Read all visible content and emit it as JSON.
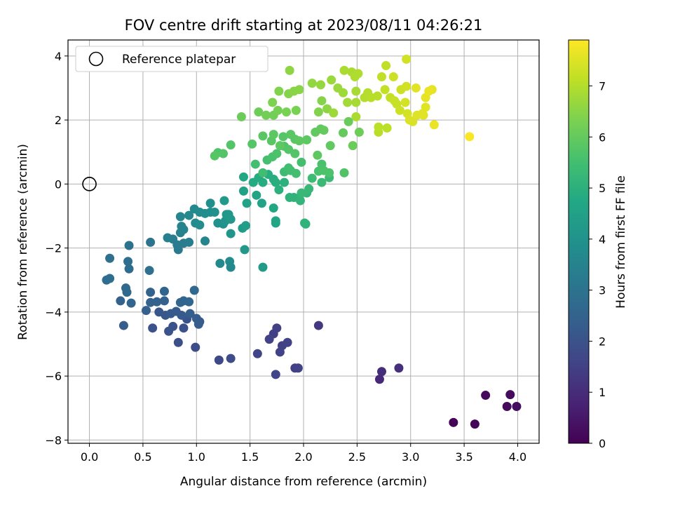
{
  "chart_data": {
    "type": "scatter",
    "title": "FOV centre drift starting at 2023/08/11 04:26:21",
    "xlabel": "Angular distance from reference (arcmin)",
    "ylabel": "Rotation from reference (arcmin)",
    "xlim": [
      -0.2,
      4.2
    ],
    "ylim": [
      -8.1,
      4.5
    ],
    "xticks": [
      0.0,
      0.5,
      1.0,
      1.5,
      2.0,
      2.5,
      3.0,
      3.5,
      4.0
    ],
    "xtick_labels": [
      "0.0",
      "0.5",
      "1.0",
      "1.5",
      "2.0",
      "2.5",
      "3.0",
      "3.5",
      "4.0"
    ],
    "yticks": [
      -8,
      -6,
      -4,
      -2,
      0,
      2,
      4
    ],
    "ytick_labels": [
      "−8",
      "−6",
      "−4",
      "−2",
      "0",
      "2",
      "4"
    ],
    "grid": true,
    "colormap": "viridis",
    "colorbar": {
      "label": "Hours from first FF file",
      "range": [
        0,
        7.9
      ],
      "ticks": [
        0,
        1,
        2,
        3,
        4,
        5,
        6,
        7
      ],
      "tick_labels": [
        "0",
        "1",
        "2",
        "3",
        "4",
        "5",
        "6",
        "7"
      ]
    },
    "legend": {
      "position": "upper-left",
      "entries": [
        {
          "label": "Reference platepar",
          "marker": "open-circle"
        }
      ]
    },
    "reference_point": {
      "x": 0.0,
      "y": 0.0
    },
    "series_format": "[x, y, hours]",
    "points": [
      [
        3.4,
        -7.45,
        0.05
      ],
      [
        3.6,
        -7.5,
        0.1
      ],
      [
        3.7,
        -6.6,
        0.15
      ],
      [
        3.9,
        -6.95,
        0.2
      ],
      [
        3.93,
        -6.58,
        0.25
      ],
      [
        3.99,
        -6.95,
        0.28
      ],
      [
        2.71,
        -6.1,
        0.9
      ],
      [
        2.73,
        -5.86,
        1.0
      ],
      [
        2.89,
        -5.75,
        1.05
      ],
      [
        2.14,
        -4.42,
        1.3
      ],
      [
        1.75,
        -4.5,
        1.5
      ],
      [
        1.72,
        -4.68,
        1.45
      ],
      [
        1.68,
        -4.85,
        1.55
      ],
      [
        1.8,
        -5.05,
        1.5
      ],
      [
        1.85,
        -4.95,
        1.52
      ],
      [
        1.78,
        -5.25,
        1.55
      ],
      [
        1.57,
        -5.3,
        1.6
      ],
      [
        1.92,
        -5.75,
        1.5
      ],
      [
        1.95,
        -5.75,
        1.55
      ],
      [
        1.74,
        -5.95,
        1.6
      ],
      [
        1.21,
        -5.5,
        1.75
      ],
      [
        1.32,
        -5.45,
        1.8
      ],
      [
        0.99,
        -5.1,
        1.85
      ],
      [
        0.83,
        -4.95,
        1.9
      ],
      [
        0.88,
        -4.5,
        1.95
      ],
      [
        0.78,
        -4.45,
        2.0
      ],
      [
        0.91,
        -4.22,
        2.05
      ],
      [
        0.59,
        -4.5,
        2.0
      ],
      [
        0.74,
        -4.6,
        2.05
      ],
      [
        0.65,
        -4.0,
        2.1
      ],
      [
        0.71,
        -4.1,
        2.15
      ],
      [
        0.76,
        -4.05,
        2.2
      ],
      [
        0.81,
        -3.98,
        2.25
      ],
      [
        0.86,
        -4.1,
        2.2
      ],
      [
        1.0,
        -4.2,
        2.3
      ],
      [
        1.03,
        -4.3,
        2.25
      ],
      [
        1.02,
        -4.38,
        2.3
      ],
      [
        0.94,
        -4.05,
        2.35
      ],
      [
        0.53,
        -3.95,
        2.4
      ],
      [
        0.57,
        -3.7,
        2.45
      ],
      [
        0.63,
        -3.68,
        2.5
      ],
      [
        0.7,
        -3.65,
        2.45
      ],
      [
        0.57,
        -3.38,
        2.5
      ],
      [
        0.7,
        -3.35,
        2.55
      ],
      [
        0.85,
        -3.7,
        2.6
      ],
      [
        0.88,
        -3.65,
        2.55
      ],
      [
        0.93,
        -3.68,
        2.6
      ],
      [
        0.98,
        -3.32,
        2.65
      ],
      [
        0.32,
        -4.42,
        2.3
      ],
      [
        0.29,
        -3.65,
        2.5
      ],
      [
        0.39,
        -3.72,
        2.55
      ],
      [
        0.34,
        -3.25,
        2.65
      ],
      [
        0.35,
        -3.38,
        2.7
      ],
      [
        0.16,
        -3.0,
        2.8
      ],
      [
        0.19,
        -2.95,
        2.85
      ],
      [
        0.56,
        -2.7,
        2.9
      ],
      [
        0.37,
        -2.65,
        2.8
      ],
      [
        0.36,
        -2.42,
        2.85
      ],
      [
        0.19,
        -2.32,
        2.9
      ],
      [
        0.37,
        -1.92,
        2.95
      ],
      [
        0.57,
        -1.82,
        3.0
      ],
      [
        0.83,
        -2.05,
        3.2
      ],
      [
        0.82,
        -1.9,
        3.25
      ],
      [
        0.88,
        -1.85,
        3.3
      ],
      [
        0.93,
        -1.82,
        3.35
      ],
      [
        0.78,
        -1.72,
        3.35
      ],
      [
        0.73,
        -1.68,
        3.4
      ],
      [
        0.85,
        -1.52,
        3.45
      ],
      [
        0.88,
        -1.42,
        3.5
      ],
      [
        0.86,
        -1.32,
        3.5
      ],
      [
        1.08,
        -1.78,
        3.55
      ],
      [
        0.85,
        -1.02,
        3.6
      ],
      [
        0.93,
        -0.98,
        3.65
      ],
      [
        0.98,
        -0.78,
        3.7
      ],
      [
        1.03,
        -0.88,
        3.75
      ],
      [
        1.08,
        -0.92,
        3.8
      ],
      [
        0.99,
        -1.22,
        3.75
      ],
      [
        1.03,
        -1.28,
        3.8
      ],
      [
        1.13,
        -0.88,
        3.85
      ],
      [
        1.17,
        -0.88,
        3.9
      ],
      [
        1.13,
        -0.6,
        3.9
      ],
      [
        1.2,
        -1.22,
        3.95
      ],
      [
        1.25,
        -1.25,
        4.0
      ],
      [
        1.27,
        -1.15,
        4.05
      ],
      [
        1.22,
        -2.48,
        3.7
      ],
      [
        1.31,
        -2.42,
        3.75
      ],
      [
        1.32,
        -2.6,
        3.7
      ],
      [
        1.32,
        -1.55,
        4.1
      ],
      [
        1.28,
        -0.95,
        4.15
      ],
      [
        1.3,
        -1.05,
        4.15
      ],
      [
        1.32,
        -1.1,
        4.2
      ],
      [
        1.3,
        -0.95,
        4.2
      ],
      [
        1.26,
        -0.52,
        4.25
      ],
      [
        1.43,
        -1.38,
        4.3
      ],
      [
        1.46,
        -1.3,
        4.35
      ],
      [
        1.45,
        -2.05,
        4.2
      ],
      [
        1.62,
        -2.6,
        4.3
      ],
      [
        1.44,
        -0.22,
        4.5
      ],
      [
        1.47,
        -0.6,
        4.55
      ],
      [
        1.56,
        -0.35,
        4.6
      ],
      [
        1.61,
        -0.6,
        4.55
      ],
      [
        1.74,
        -1.15,
        4.6
      ],
      [
        1.74,
        -1.22,
        4.65
      ],
      [
        1.72,
        -0.75,
        4.7
      ],
      [
        1.44,
        0.22,
        4.7
      ],
      [
        1.53,
        0.05,
        4.8
      ],
      [
        1.58,
        0.2,
        4.85
      ],
      [
        1.62,
        0.05,
        4.85
      ],
      [
        1.67,
        0.3,
        4.9
      ],
      [
        1.72,
        0.15,
        4.9
      ],
      [
        1.74,
        0.05,
        4.95
      ],
      [
        1.77,
        -0.18,
        5.0
      ],
      [
        1.82,
        0.05,
        5.0
      ],
      [
        1.87,
        -0.42,
        5.05
      ],
      [
        1.91,
        -0.42,
        5.1
      ],
      [
        1.97,
        -0.52,
        5.15
      ],
      [
        2.01,
        -1.22,
        5.05
      ],
      [
        2.02,
        -1.25,
        5.1
      ],
      [
        2.03,
        -0.28,
        5.2
      ],
      [
        1.98,
        -0.28,
        5.25
      ],
      [
        2.05,
        -0.15,
        5.25
      ],
      [
        2.17,
        0.05,
        5.3
      ],
      [
        2.24,
        0.2,
        5.35
      ],
      [
        2.08,
        0.18,
        5.4
      ],
      [
        1.82,
        0.38,
        5.4
      ],
      [
        1.86,
        0.5,
        5.45
      ],
      [
        1.88,
        0.42,
        5.5
      ],
      [
        1.93,
        0.33,
        5.5
      ],
      [
        1.98,
        0.68,
        5.55
      ],
      [
        2.17,
        0.62,
        5.6
      ],
      [
        2.14,
        0.4,
        5.6
      ],
      [
        2.19,
        0.42,
        5.65
      ],
      [
        2.24,
        0.35,
        5.65
      ],
      [
        2.38,
        0.35,
        5.7
      ],
      [
        1.55,
        0.62,
        5.5
      ],
      [
        1.62,
        0.35,
        5.45
      ],
      [
        1.66,
        0.75,
        5.55
      ],
      [
        1.71,
        0.85,
        5.6
      ],
      [
        1.75,
        0.95,
        5.65
      ],
      [
        1.82,
        1.18,
        5.7
      ],
      [
        1.86,
        1.08,
        5.75
      ],
      [
        1.92,
        0.95,
        5.75
      ],
      [
        1.81,
        1.48,
        5.8
      ],
      [
        1.88,
        1.55,
        5.85
      ],
      [
        1.92,
        1.4,
        5.85
      ],
      [
        1.96,
        1.35,
        5.9
      ],
      [
        2.03,
        1.38,
        5.9
      ],
      [
        2.11,
        1.62,
        5.95
      ],
      [
        2.16,
        1.72,
        5.95
      ],
      [
        2.19,
        1.68,
        6.0
      ],
      [
        2.13,
        0.9,
        5.9
      ],
      [
        2.25,
        1.2,
        5.95
      ],
      [
        2.37,
        1.6,
        6.0
      ],
      [
        2.42,
        1.95,
        6.05
      ],
      [
        2.46,
        1.2,
        6.1
      ],
      [
        2.52,
        1.62,
        6.15
      ],
      [
        1.62,
        1.5,
        5.85
      ],
      [
        1.7,
        1.35,
        5.85
      ],
      [
        1.72,
        1.55,
        5.9
      ],
      [
        1.78,
        1.2,
        5.9
      ],
      [
        1.52,
        1.25,
        5.8
      ],
      [
        1.32,
        1.22,
        5.75
      ],
      [
        1.2,
        0.98,
        5.7
      ],
      [
        1.25,
        0.95,
        5.75
      ],
      [
        1.17,
        0.88,
        5.8
      ],
      [
        1.42,
        2.1,
        6.1
      ],
      [
        1.58,
        2.25,
        6.15
      ],
      [
        1.65,
        2.15,
        6.2
      ],
      [
        1.72,
        2.15,
        6.2
      ],
      [
        1.76,
        2.3,
        6.25
      ],
      [
        1.84,
        2.25,
        6.3
      ],
      [
        1.93,
        2.3,
        6.3
      ],
      [
        1.71,
        2.55,
        6.35
      ],
      [
        1.77,
        2.9,
        6.4
      ],
      [
        1.86,
        2.82,
        6.45
      ],
      [
        1.91,
        2.9,
        6.5
      ],
      [
        1.96,
        2.95,
        6.5
      ],
      [
        1.87,
        3.55,
        6.55
      ],
      [
        2.14,
        2.25,
        6.4
      ],
      [
        2.17,
        2.6,
        6.45
      ],
      [
        2.22,
        2.35,
        6.55
      ],
      [
        2.08,
        3.15,
        6.6
      ],
      [
        2.16,
        3.1,
        6.65
      ],
      [
        2.26,
        3.25,
        6.7
      ],
      [
        2.32,
        3.0,
        6.7
      ],
      [
        2.37,
        2.85,
        6.75
      ],
      [
        2.28,
        2.22,
        6.75
      ],
      [
        2.41,
        2.55,
        6.8
      ],
      [
        2.49,
        2.55,
        6.85
      ],
      [
        2.49,
        2.9,
        6.85
      ],
      [
        2.38,
        3.55,
        6.9
      ],
      [
        2.45,
        3.5,
        6.9
      ],
      [
        2.48,
        3.35,
        6.95
      ],
      [
        2.51,
        3.45,
        6.95
      ],
      [
        2.49,
        2.1,
        6.9
      ],
      [
        2.57,
        2.7,
        7.0
      ],
      [
        2.6,
        2.85,
        7.0
      ],
      [
        2.63,
        2.7,
        7.05
      ],
      [
        2.69,
        2.75,
        7.05
      ],
      [
        2.7,
        1.62,
        7.05
      ],
      [
        2.7,
        1.78,
        7.1
      ],
      [
        2.78,
        1.75,
        7.1
      ],
      [
        2.73,
        3.35,
        7.15
      ],
      [
        2.77,
        3.7,
        7.15
      ],
      [
        2.76,
        2.95,
        7.2
      ],
      [
        2.81,
        2.7,
        7.2
      ],
      [
        2.85,
        2.6,
        7.25
      ],
      [
        2.87,
        2.5,
        7.25
      ],
      [
        2.91,
        2.95,
        7.3
      ],
      [
        2.9,
        2.3,
        7.3
      ],
      [
        2.84,
        3.35,
        7.3
      ],
      [
        2.96,
        3.9,
        7.35
      ],
      [
        2.96,
        3.05,
        7.35
      ],
      [
        2.95,
        2.55,
        7.4
      ],
      [
        2.97,
        2.2,
        7.4
      ],
      [
        2.99,
        2.0,
        7.45
      ],
      [
        3.02,
        1.95,
        7.45
      ],
      [
        3.06,
        2.15,
        7.5
      ],
      [
        3.12,
        2.15,
        7.5
      ],
      [
        3.11,
        2.2,
        7.55
      ],
      [
        3.14,
        2.4,
        7.55
      ],
      [
        3.05,
        3.0,
        7.55
      ],
      [
        3.14,
        2.7,
        7.6
      ],
      [
        3.2,
        2.95,
        7.6
      ],
      [
        3.17,
        2.9,
        7.65
      ],
      [
        3.22,
        1.85,
        7.65
      ],
      [
        3.55,
        1.48,
        7.85
      ]
    ]
  }
}
